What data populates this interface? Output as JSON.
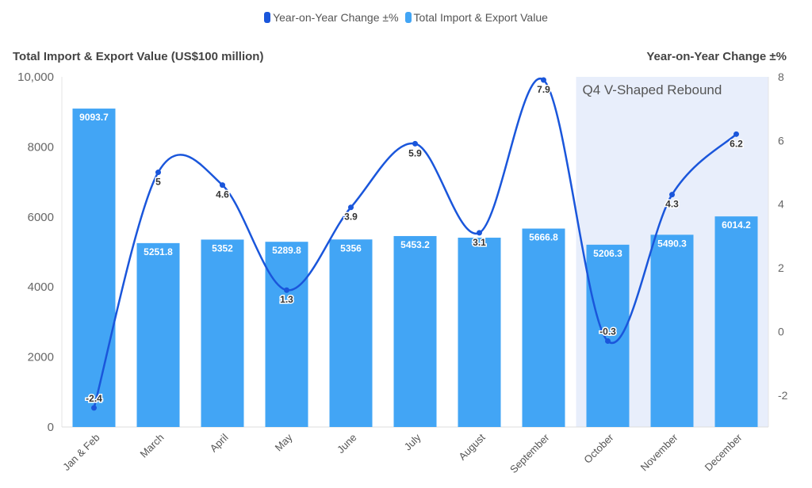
{
  "chart_data": {
    "type": "bar+line",
    "categories": [
      "Jan & Feb",
      "March",
      "April",
      "May",
      "June",
      "July",
      "August",
      "September",
      "October",
      "November",
      "December"
    ],
    "series": [
      {
        "name": "Total Import & Export Value",
        "type": "bar",
        "axis": "left",
        "color": "#42a5f5",
        "values": [
          9093.7,
          5251.8,
          5352,
          5289.8,
          5356,
          5453.2,
          5406.5,
          5666.8,
          5206.3,
          5490.3,
          6014.2
        ],
        "labels": [
          "9093.7",
          "5251.8",
          "5352",
          "5289.8",
          "5356",
          "5453.2",
          "",
          "5666.8",
          "5206.3",
          "5490.3",
          "6014.2"
        ]
      },
      {
        "name": "Year-on-Year Change ±%",
        "type": "line",
        "axis": "right",
        "color": "#1a56db",
        "values": [
          -2.4,
          5,
          4.6,
          1.3,
          3.9,
          5.9,
          3.1,
          7.9,
          -0.3,
          4.3,
          6.2
        ],
        "labels": [
          "-2.4",
          "5",
          "4.6",
          "1.3",
          "3.9",
          "5.9",
          "3.1",
          "7.9",
          "-0.3",
          "4.3",
          "6.2"
        ]
      }
    ],
    "ylabel_left": "Total Import & Export Value (US$100 million)",
    "ylabel_right": "Year-on-Year Change ±%",
    "ylim_left": [
      0,
      10000
    ],
    "yticks_left": [
      "0",
      "2000",
      "4000",
      "6000",
      "8000",
      "10,000"
    ],
    "ylim_right": [
      -3,
      8
    ],
    "yticks_right": [
      "-2",
      "0",
      "2",
      "4",
      "6",
      "8"
    ],
    "legend": "top-center",
    "grid": false,
    "annotation": {
      "text": "Q4 V-Shaped Rebound",
      "from": "October",
      "to": "December",
      "color": "#e8eefb"
    }
  }
}
